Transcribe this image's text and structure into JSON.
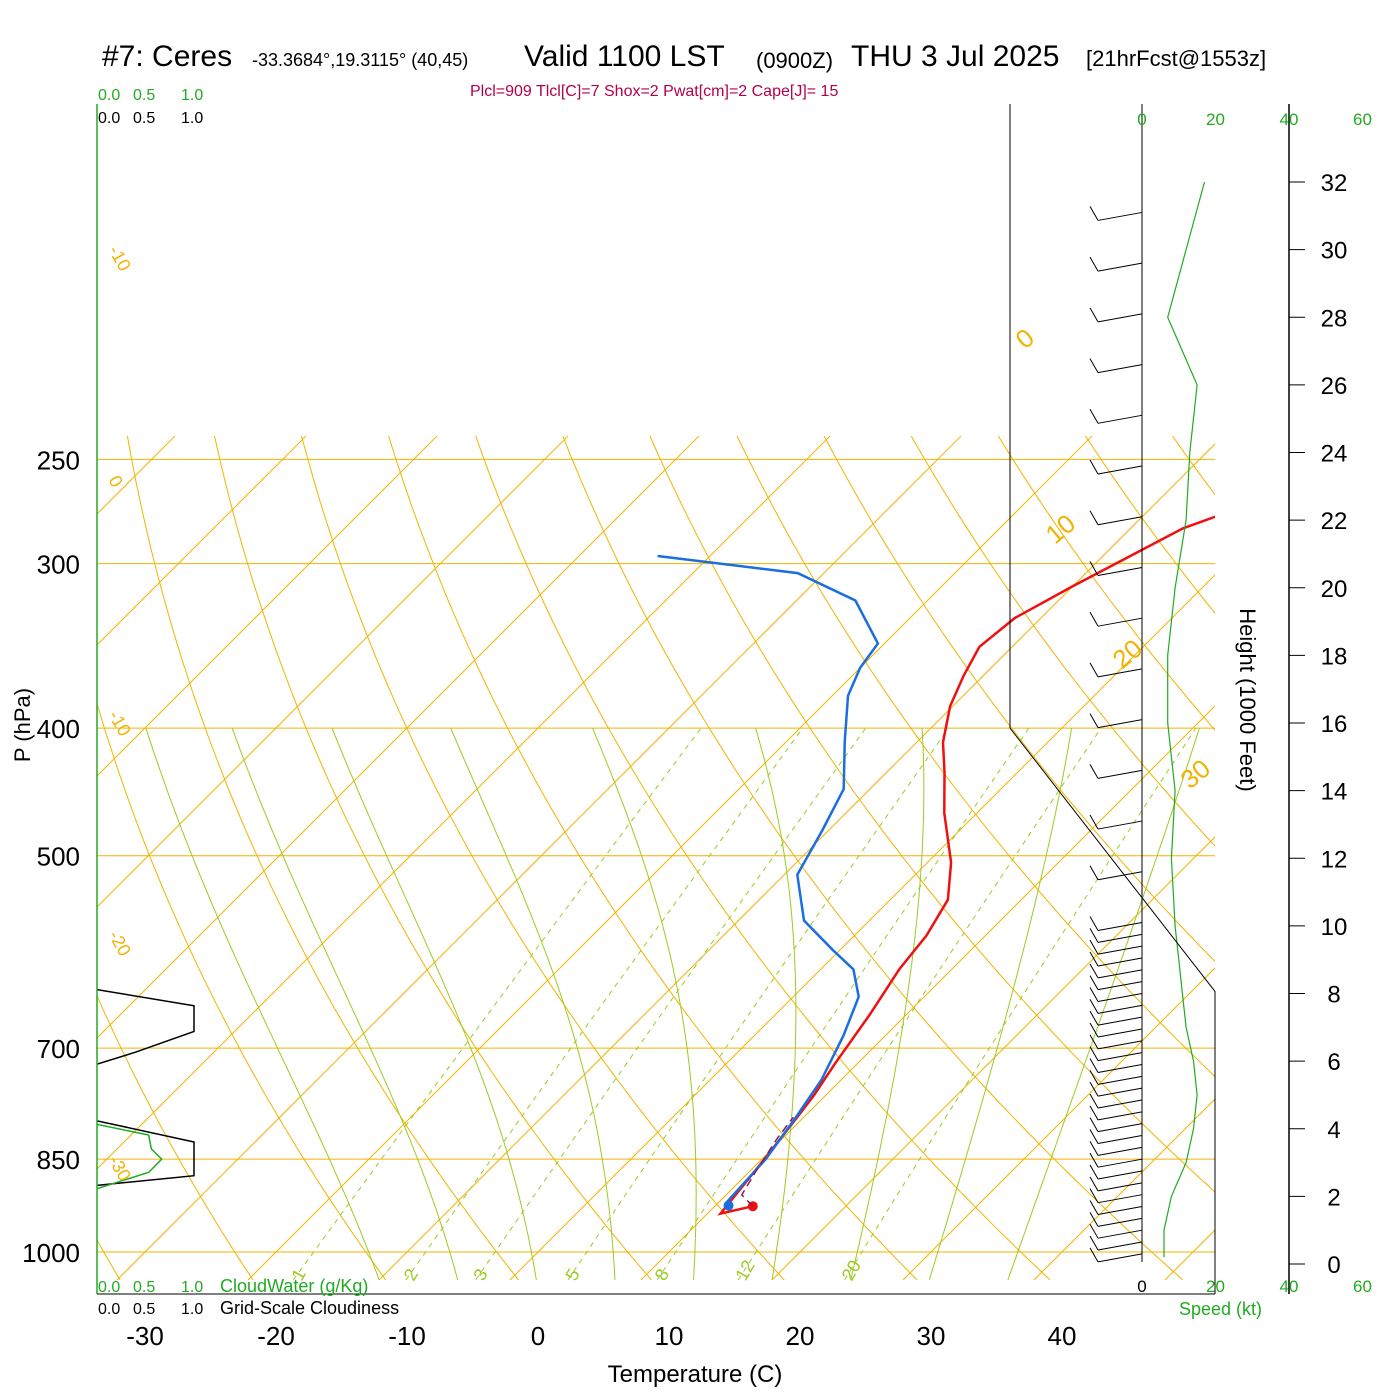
{
  "header": {
    "station": "#7: Ceres",
    "coords": "-33.3684°,19.3115° (40,45)",
    "valid": "Valid 1100 LST",
    "zulu": "(0900Z)",
    "day": "THU 3 Jul 2025",
    "forecast": "[21hrFcst@1553z]",
    "stats": "Plcl=909 Tlcl[C]=7 Shox=2 Pwat[cm]=2 Cape[J]= 15"
  },
  "axes": {
    "ylabel": "P (hPa)",
    "xlabel": "Temperature (C)",
    "height_label": "Height (1000 Feet)",
    "speed_label": "Speed (kt)",
    "cloudwater_label": "CloudWater (g/Kg)",
    "cloudiness_label": "Grid-Scale Cloudiness",
    "pressure_ticks": [
      "250",
      "300",
      "400",
      "500",
      "700",
      "850",
      "1000"
    ],
    "temp_ticks": [
      "-30",
      "-20",
      "-10",
      "0",
      "10",
      "20",
      "30",
      "40"
    ],
    "height_ticks": [
      "0",
      "2",
      "4",
      "6",
      "8",
      "10",
      "12",
      "14",
      "16",
      "18",
      "20",
      "22",
      "24",
      "26",
      "28",
      "30",
      "32"
    ],
    "speed_ticks": [
      "0",
      "20",
      "40",
      "60"
    ],
    "scale_ticks": [
      "0.0",
      "0.5",
      "1.0"
    ],
    "mixing_ratio_labels": [
      "1",
      "2",
      "3",
      "5",
      "8",
      "12",
      "20"
    ],
    "dry_adiabat_labels": [
      "-10",
      "0",
      "-10",
      "-20",
      "-30"
    ],
    "isotherm_labels": [
      "0",
      "10",
      "20",
      "30"
    ]
  },
  "colors": {
    "temperature": "#ee1111",
    "dewpoint": "#1a6ee0",
    "isobar": "#f0b400",
    "dry_adiabat": "#f0b400",
    "moist_adiabat": "#99cc22",
    "mixing_ratio": "#99cc22",
    "stats_text": "#b2004f",
    "green_axis": "#22aa22",
    "parcel": "#8b1a5a"
  },
  "chart_data": {
    "type": "line",
    "title": "#7: Ceres",
    "xlabel": "Temperature (C)",
    "ylabel": "P (hPa)",
    "xlim": [
      -34,
      36
    ],
    "ylim": [
      1050,
      250
    ],
    "y_scale": "log",
    "series": [
      {
        "name": "Temperature",
        "points": [
          [
            12.9,
            923
          ],
          [
            11.0,
            935
          ],
          [
            10.2,
            850
          ],
          [
            9.5,
            790
          ],
          [
            9.1,
            760
          ],
          [
            8.3,
            720
          ],
          [
            7.2,
            660
          ],
          [
            6.0,
            610
          ],
          [
            5.5,
            575
          ],
          [
            4.4,
            540
          ],
          [
            1.8,
            506
          ],
          [
            -2.5,
            464
          ],
          [
            -5.6,
            432
          ],
          [
            -8.0,
            410
          ],
          [
            -10.2,
            385
          ],
          [
            -11.5,
            365
          ],
          [
            -12.5,
            347
          ],
          [
            -12.0,
            330
          ],
          [
            -10.0,
            312
          ],
          [
            -6.0,
            282
          ],
          [
            -1.5,
            266
          ]
        ]
      },
      {
        "name": "Dewpoint",
        "points": [
          [
            11.0,
            922
          ],
          [
            10.6,
            915
          ],
          [
            10.3,
            850
          ],
          [
            9.4,
            790
          ],
          [
            8.5,
            740
          ],
          [
            6.8,
            685
          ],
          [
            5.0,
            640
          ],
          [
            2.5,
            610
          ],
          [
            -0.5,
            590
          ],
          [
            -5.0,
            560
          ],
          [
            -9.0,
            517
          ],
          [
            -10.5,
            478
          ],
          [
            -12.0,
            445
          ],
          [
            -15.5,
            410
          ],
          [
            -18.8,
            378
          ],
          [
            -20.0,
            360
          ],
          [
            -20.5,
            345
          ],
          [
            -25.5,
            320
          ],
          [
            -32.0,
            305
          ],
          [
            -44.0,
            296
          ]
        ]
      },
      {
        "name": "Parcel",
        "points": [
          [
            12.9,
            923
          ],
          [
            11.2,
            905
          ],
          [
            10.5,
            870
          ],
          [
            9.6,
            820
          ],
          [
            9.2,
            790
          ]
        ]
      }
    ],
    "wind_speed_kt": [
      [
        0.2,
        6
      ],
      [
        1.0,
        6
      ],
      [
        1.5,
        7
      ],
      [
        2.0,
        8
      ],
      [
        3.0,
        12
      ],
      [
        4.0,
        14
      ],
      [
        5.0,
        15
      ],
      [
        6.0,
        14
      ],
      [
        7.0,
        12
      ],
      [
        8.0,
        11
      ],
      [
        9.0,
        10
      ],
      [
        10.0,
        9
      ],
      [
        12.0,
        8
      ],
      [
        14.0,
        9
      ],
      [
        16.0,
        7
      ],
      [
        18.0,
        7
      ],
      [
        20.0,
        9
      ],
      [
        22.0,
        12
      ],
      [
        24.0,
        13
      ],
      [
        26.0,
        15
      ],
      [
        28.0,
        7
      ],
      [
        30.0,
        12
      ],
      [
        32.0,
        17
      ]
    ],
    "cloudiness": [
      [
        0.0,
        795
      ],
      [
        0.75,
        825
      ],
      [
        0.75,
        875
      ],
      [
        0.0,
        890
      ]
    ],
    "cloudiness_upper": [
      [
        0.0,
        632
      ],
      [
        0.75,
        650
      ],
      [
        0.75,
        680
      ],
      [
        0.3,
        705
      ],
      [
        0.0,
        720
      ]
    ],
    "cloud_water_gkg": [
      [
        0.0,
        800
      ],
      [
        0.4,
        815
      ],
      [
        0.42,
        835
      ],
      [
        0.5,
        850
      ],
      [
        0.4,
        870
      ],
      [
        0.0,
        895
      ]
    ],
    "grid": true,
    "legend": "none"
  }
}
